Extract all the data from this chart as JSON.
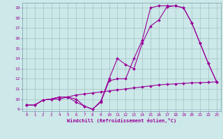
{
  "xlabel": "Windchill (Refroidissement éolien,°C)",
  "bg_color": "#cce8e8",
  "line_color": "#990099",
  "grid_color": "#99bbbb",
  "spine_color": "#7799aa",
  "xmin": 0,
  "xmax": 23,
  "ymin": 9,
  "ymax": 19,
  "line1_x": [
    0,
    1,
    2,
    3,
    4,
    5,
    6,
    7,
    8,
    9,
    10,
    11,
    12,
    13,
    14,
    15,
    16,
    17,
    18,
    19,
    20,
    21,
    22,
    23
  ],
  "line1_y": [
    9.4,
    9.4,
    9.9,
    10.0,
    10.0,
    10.2,
    9.7,
    9.3,
    9.0,
    9.8,
    12.0,
    14.0,
    13.4,
    13.0,
    15.5,
    17.2,
    17.8,
    19.1,
    19.2,
    19.0,
    17.5,
    15.5,
    13.5,
    11.7
  ],
  "line2_x": [
    0,
    1,
    2,
    3,
    4,
    5,
    6,
    7,
    8,
    9,
    10,
    11,
    12,
    13,
    14,
    15,
    16,
    17,
    18,
    19,
    20,
    21,
    22,
    23
  ],
  "line2_y": [
    9.4,
    9.4,
    9.9,
    10.0,
    10.2,
    10.2,
    10.0,
    9.3,
    9.0,
    9.7,
    11.8,
    12.0,
    12.0,
    14.0,
    15.8,
    19.0,
    19.2,
    19.2,
    19.2,
    19.0,
    17.5,
    15.5,
    13.5,
    11.7
  ],
  "line3_x": [
    0,
    1,
    2,
    3,
    4,
    5,
    6,
    7,
    8,
    9,
    10,
    11,
    12,
    13,
    14,
    15,
    16,
    17,
    18,
    19,
    20,
    21,
    22,
    23
  ],
  "line3_y": [
    9.4,
    9.4,
    9.9,
    10.0,
    10.2,
    10.2,
    10.4,
    10.5,
    10.6,
    10.7,
    10.8,
    10.9,
    11.0,
    11.1,
    11.2,
    11.3,
    11.4,
    11.45,
    11.5,
    11.55,
    11.6,
    11.62,
    11.65,
    11.7
  ]
}
